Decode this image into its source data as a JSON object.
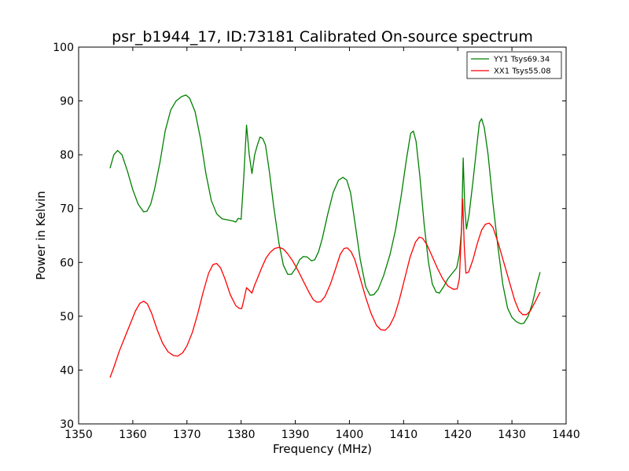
{
  "chart_data": {
    "type": "line",
    "title": "psr_b1944_17, ID:73181 Calibrated On-source spectrum",
    "xlabel": "Frequency (MHz)",
    "ylabel": "Power in Kelvin",
    "xlim": [
      1350,
      1440
    ],
    "ylim": [
      30,
      100
    ],
    "xticks": [
      "1350",
      "1360",
      "1370",
      "1380",
      "1390",
      "1400",
      "1410",
      "1420",
      "1430",
      "1440"
    ],
    "yticks": [
      "30",
      "40",
      "50",
      "60",
      "70",
      "80",
      "90",
      "100"
    ],
    "grid": false,
    "legend_position": "top-right",
    "series": [
      {
        "name": "YY1 Tsys69.34",
        "color": "#008000",
        "points": [
          [
            1355.8,
            77.5
          ],
          [
            1356.5,
            80.0
          ],
          [
            1357.2,
            80.8
          ],
          [
            1358.0,
            80.0
          ],
          [
            1359.0,
            77.0
          ],
          [
            1360.0,
            73.5
          ],
          [
            1361.0,
            70.8
          ],
          [
            1362.0,
            69.4
          ],
          [
            1362.6,
            69.5
          ],
          [
            1363.3,
            70.8
          ],
          [
            1364.0,
            73.5
          ],
          [
            1365.0,
            78.5
          ],
          [
            1366.0,
            84.5
          ],
          [
            1367.0,
            88.3
          ],
          [
            1368.0,
            90.0
          ],
          [
            1369.0,
            90.8
          ],
          [
            1369.8,
            91.1
          ],
          [
            1370.5,
            90.5
          ],
          [
            1371.5,
            88.0
          ],
          [
            1372.5,
            83.0
          ],
          [
            1373.5,
            76.5
          ],
          [
            1374.5,
            71.5
          ],
          [
            1375.5,
            69.0
          ],
          [
            1376.5,
            68.1
          ],
          [
            1377.5,
            67.9
          ],
          [
            1378.5,
            67.7
          ],
          [
            1379.0,
            67.5
          ],
          [
            1379.5,
            68.2
          ],
          [
            1380.0,
            68.0
          ],
          [
            1380.5,
            76.0
          ],
          [
            1381.0,
            85.5
          ],
          [
            1381.5,
            80.0
          ],
          [
            1382.0,
            76.5
          ],
          [
            1382.5,
            80.0
          ],
          [
            1383.0,
            81.8
          ],
          [
            1383.5,
            83.3
          ],
          [
            1384.0,
            83.0
          ],
          [
            1384.5,
            81.8
          ],
          [
            1385.2,
            77.0
          ],
          [
            1386.0,
            70.5
          ],
          [
            1387.0,
            63.5
          ],
          [
            1387.8,
            59.5
          ],
          [
            1388.6,
            57.8
          ],
          [
            1389.3,
            57.8
          ],
          [
            1390.0,
            58.8
          ],
          [
            1390.8,
            60.5
          ],
          [
            1391.5,
            61.1
          ],
          [
            1392.2,
            61.0
          ],
          [
            1393.0,
            60.3
          ],
          [
            1393.6,
            60.5
          ],
          [
            1394.3,
            62.0
          ],
          [
            1395.0,
            64.5
          ],
          [
            1396.0,
            69.0
          ],
          [
            1397.0,
            73.0
          ],
          [
            1398.0,
            75.3
          ],
          [
            1398.8,
            75.8
          ],
          [
            1399.5,
            75.3
          ],
          [
            1400.2,
            73.0
          ],
          [
            1401.0,
            67.5
          ],
          [
            1402.0,
            60.5
          ],
          [
            1403.0,
            55.5
          ],
          [
            1403.8,
            53.9
          ],
          [
            1404.5,
            54.0
          ],
          [
            1405.3,
            55.0
          ],
          [
            1406.3,
            57.5
          ],
          [
            1407.5,
            61.5
          ],
          [
            1408.5,
            66.0
          ],
          [
            1409.5,
            72.0
          ],
          [
            1410.5,
            79.0
          ],
          [
            1411.3,
            84.0
          ],
          [
            1411.8,
            84.4
          ],
          [
            1412.3,
            82.5
          ],
          [
            1413.0,
            76.0
          ],
          [
            1413.8,
            67.0
          ],
          [
            1414.6,
            60.0
          ],
          [
            1415.3,
            56.0
          ],
          [
            1416.0,
            54.5
          ],
          [
            1416.6,
            54.3
          ],
          [
            1417.4,
            55.5
          ],
          [
            1418.2,
            57.0
          ],
          [
            1419.0,
            58.0
          ],
          [
            1419.8,
            59.0
          ],
          [
            1420.3,
            61.5
          ],
          [
            1420.7,
            66.0
          ],
          [
            1421.0,
            79.4
          ],
          [
            1421.3,
            70.0
          ],
          [
            1421.6,
            66.2
          ],
          [
            1422.1,
            69.0
          ],
          [
            1422.8,
            75.0
          ],
          [
            1423.5,
            81.5
          ],
          [
            1424.0,
            86.0
          ],
          [
            1424.4,
            86.7
          ],
          [
            1424.9,
            85.0
          ],
          [
            1425.6,
            80.0
          ],
          [
            1426.5,
            71.0
          ],
          [
            1427.4,
            63.0
          ],
          [
            1428.3,
            56.0
          ],
          [
            1429.2,
            51.5
          ],
          [
            1430.0,
            49.8
          ],
          [
            1430.8,
            49.0
          ],
          [
            1431.6,
            48.6
          ],
          [
            1432.2,
            48.7
          ],
          [
            1433.0,
            50.0
          ],
          [
            1433.8,
            52.5
          ],
          [
            1434.6,
            56.0
          ],
          [
            1435.2,
            58.2
          ]
        ]
      },
      {
        "name": "XX1 Tsys55.08",
        "color": "#ff0000",
        "points": [
          [
            1355.8,
            38.6
          ],
          [
            1356.5,
            40.5
          ],
          [
            1357.5,
            43.5
          ],
          [
            1358.5,
            46.0
          ],
          [
            1359.5,
            48.5
          ],
          [
            1360.5,
            51.0
          ],
          [
            1361.3,
            52.4
          ],
          [
            1362.0,
            52.8
          ],
          [
            1362.7,
            52.3
          ],
          [
            1363.5,
            50.5
          ],
          [
            1364.5,
            47.5
          ],
          [
            1365.5,
            45.0
          ],
          [
            1366.5,
            43.4
          ],
          [
            1367.5,
            42.7
          ],
          [
            1368.3,
            42.6
          ],
          [
            1369.2,
            43.2
          ],
          [
            1370.0,
            44.5
          ],
          [
            1371.0,
            47.0
          ],
          [
            1372.0,
            50.5
          ],
          [
            1373.0,
            54.5
          ],
          [
            1374.0,
            58.0
          ],
          [
            1374.8,
            59.6
          ],
          [
            1375.5,
            59.8
          ],
          [
            1376.2,
            59.0
          ],
          [
            1377.0,
            57.0
          ],
          [
            1378.0,
            54.0
          ],
          [
            1379.0,
            52.0
          ],
          [
            1379.6,
            51.5
          ],
          [
            1380.1,
            51.4
          ],
          [
            1380.5,
            53.0
          ],
          [
            1381.0,
            55.3
          ],
          [
            1381.6,
            54.7
          ],
          [
            1382.0,
            54.3
          ],
          [
            1382.5,
            55.8
          ],
          [
            1383.0,
            57.0
          ],
          [
            1383.8,
            59.0
          ],
          [
            1384.6,
            60.8
          ],
          [
            1385.4,
            61.9
          ],
          [
            1386.2,
            62.6
          ],
          [
            1387.0,
            62.8
          ],
          [
            1387.8,
            62.5
          ],
          [
            1388.6,
            61.6
          ],
          [
            1389.5,
            60.3
          ],
          [
            1390.5,
            58.5
          ],
          [
            1391.5,
            56.5
          ],
          [
            1392.5,
            54.5
          ],
          [
            1393.3,
            53.1
          ],
          [
            1394.0,
            52.6
          ],
          [
            1394.7,
            52.7
          ],
          [
            1395.5,
            53.7
          ],
          [
            1396.5,
            56.0
          ],
          [
            1397.5,
            59.0
          ],
          [
            1398.3,
            61.5
          ],
          [
            1399.0,
            62.6
          ],
          [
            1399.6,
            62.7
          ],
          [
            1400.3,
            62.0
          ],
          [
            1401.0,
            60.5
          ],
          [
            1402.0,
            57.0
          ],
          [
            1403.0,
            53.5
          ],
          [
            1404.0,
            50.5
          ],
          [
            1405.0,
            48.3
          ],
          [
            1405.8,
            47.5
          ],
          [
            1406.6,
            47.4
          ],
          [
            1407.4,
            48.2
          ],
          [
            1408.3,
            50.0
          ],
          [
            1409.2,
            53.0
          ],
          [
            1410.2,
            57.0
          ],
          [
            1411.2,
            61.0
          ],
          [
            1412.2,
            63.8
          ],
          [
            1412.9,
            64.7
          ],
          [
            1413.5,
            64.5
          ],
          [
            1414.3,
            63.3
          ],
          [
            1415.2,
            61.3
          ],
          [
            1416.2,
            59.0
          ],
          [
            1417.2,
            57.0
          ],
          [
            1418.2,
            55.6
          ],
          [
            1419.2,
            55.0
          ],
          [
            1419.9,
            55.1
          ],
          [
            1420.3,
            57.0
          ],
          [
            1420.6,
            64.0
          ],
          [
            1420.9,
            71.8
          ],
          [
            1421.2,
            63.0
          ],
          [
            1421.5,
            58.0
          ],
          [
            1422.0,
            58.2
          ],
          [
            1422.8,
            60.5
          ],
          [
            1423.6,
            63.5
          ],
          [
            1424.4,
            66.0
          ],
          [
            1425.1,
            67.1
          ],
          [
            1425.8,
            67.3
          ],
          [
            1426.5,
            66.5
          ],
          [
            1427.5,
            63.5
          ],
          [
            1428.5,
            60.0
          ],
          [
            1429.5,
            56.5
          ],
          [
            1430.5,
            53.0
          ],
          [
            1431.3,
            51.0
          ],
          [
            1432.0,
            50.3
          ],
          [
            1432.7,
            50.3
          ],
          [
            1433.4,
            51.0
          ],
          [
            1434.2,
            52.5
          ],
          [
            1435.2,
            54.5
          ]
        ]
      }
    ]
  }
}
